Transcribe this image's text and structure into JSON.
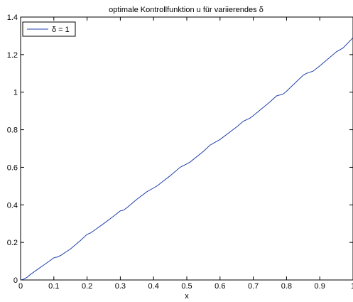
{
  "chart_data": {
    "type": "line",
    "title": "optimale Kontrollfunktion u für variierendes δ",
    "xlabel": "x",
    "ylabel": "",
    "xlim": [
      0,
      1
    ],
    "ylim": [
      0,
      1.4
    ],
    "x_ticks": [
      "0",
      "0.1",
      "0.2",
      "0.3",
      "0.4",
      "0.5",
      "0.6",
      "0.7",
      "0.8",
      "0.9",
      "1"
    ],
    "y_ticks": [
      "0",
      "0.2",
      "0.4",
      "0.6",
      "0.8",
      "1",
      "1.2",
      "1.4"
    ],
    "grid": false,
    "legend_position": "top-left",
    "series": [
      {
        "name": "δ = 1",
        "color": "#1f3fa8",
        "x": [
          0,
          0.01,
          0.02,
          0.03,
          0.05,
          0.07,
          0.09,
          0.1,
          0.11,
          0.12,
          0.15,
          0.18,
          0.2,
          0.21,
          0.22,
          0.25,
          0.28,
          0.3,
          0.31,
          0.32,
          0.35,
          0.38,
          0.4,
          0.41,
          0.45,
          0.48,
          0.5,
          0.51,
          0.55,
          0.57,
          0.59,
          0.6,
          0.65,
          0.67,
          0.69,
          0.7,
          0.75,
          0.77,
          0.79,
          0.8,
          0.85,
          0.86,
          0.88,
          0.9,
          0.95,
          0.97,
          1.0
        ],
        "values": [
          0,
          0.005,
          0.015,
          0.03,
          0.055,
          0.08,
          0.105,
          0.118,
          0.122,
          0.13,
          0.165,
          0.21,
          0.243,
          0.25,
          0.262,
          0.3,
          0.34,
          0.368,
          0.372,
          0.385,
          0.43,
          0.47,
          0.49,
          0.5,
          0.555,
          0.6,
          0.618,
          0.628,
          0.685,
          0.718,
          0.738,
          0.748,
          0.815,
          0.845,
          0.862,
          0.875,
          0.948,
          0.98,
          0.99,
          1.005,
          1.09,
          1.1,
          1.112,
          1.14,
          1.215,
          1.235,
          1.29
        ]
      }
    ]
  }
}
